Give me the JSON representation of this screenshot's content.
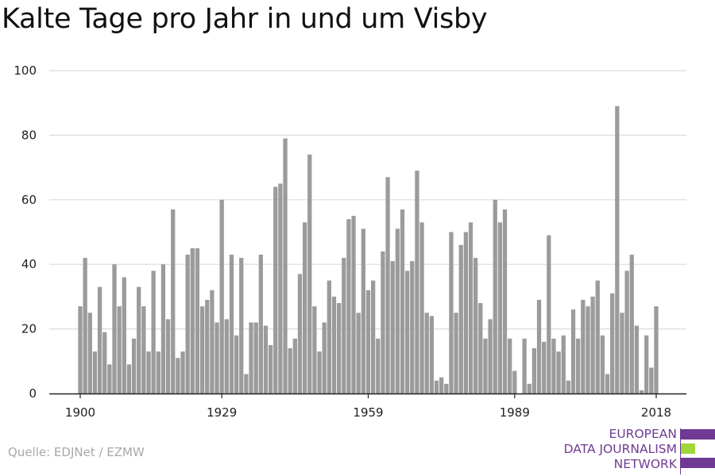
{
  "title": "Kalte Tage pro Jahr in und um Visby",
  "source": "Quelle: EDJNet / EZMW",
  "logo": {
    "lines": [
      "EUROPEAN",
      "DATA JOURNALISM",
      "NETWORK"
    ],
    "colors": {
      "purple": "#6f3a93",
      "green": "#9fd63a"
    }
  },
  "colors": {
    "bar": "#9b9b9b",
    "grid": "#dcdcdc",
    "axis": "#222222"
  },
  "chart_data": {
    "type": "bar",
    "title": "Kalte Tage pro Jahr in und um Visby",
    "xlabel": "",
    "ylabel": "",
    "ylim": [
      0,
      100
    ],
    "yticks": [
      0,
      20,
      40,
      60,
      80,
      100
    ],
    "xticks": [
      1900,
      1929,
      1959,
      1989,
      2018
    ],
    "grid": true,
    "x_start": 1900,
    "x_end": 2018,
    "values": [
      27,
      42,
      25,
      13,
      33,
      19,
      9,
      40,
      27,
      36,
      9,
      17,
      33,
      27,
      13,
      38,
      13,
      40,
      23,
      57,
      11,
      13,
      43,
      45,
      45,
      27,
      29,
      32,
      22,
      60,
      23,
      43,
      18,
      42,
      6,
      22,
      22,
      43,
      21,
      15,
      64,
      65,
      79,
      14,
      17,
      37,
      53,
      74,
      27,
      13,
      22,
      35,
      30,
      28,
      42,
      54,
      55,
      25,
      51,
      32,
      35,
      17,
      44,
      67,
      41,
      51,
      57,
      38,
      41,
      69,
      53,
      25,
      24,
      4,
      5,
      3,
      50,
      25,
      46,
      50,
      53,
      42,
      28,
      17,
      23,
      60,
      53,
      57,
      17,
      7,
      0,
      17,
      3,
      14,
      29,
      16,
      49,
      17,
      13,
      18,
      4,
      26,
      17,
      29,
      27,
      30,
      35,
      18,
      6,
      31,
      89,
      25,
      38,
      43,
      21,
      1,
      18,
      8,
      27
    ]
  }
}
